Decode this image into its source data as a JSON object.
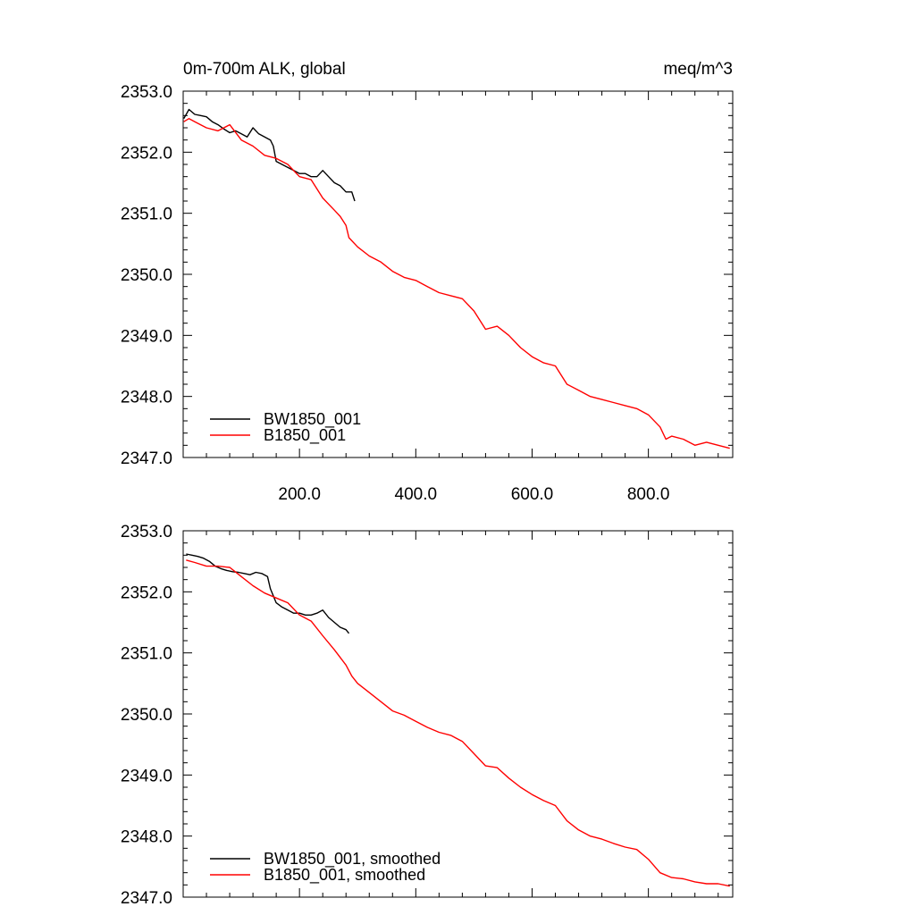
{
  "chart_data": [
    {
      "type": "line",
      "title_left": "0m-700m ALK, global",
      "title_right": "meq/m^3",
      "xlim": [
        0,
        945
      ],
      "ylim": [
        2347.0,
        2353.0
      ],
      "x_ticks": [
        200,
        400,
        600,
        800
      ],
      "x_tick_labels": [
        "200.0",
        "400.0",
        "600.0",
        "800.0"
      ],
      "y_ticks": [
        2347,
        2348,
        2349,
        2350,
        2351,
        2352,
        2353
      ],
      "y_tick_labels": [
        "2347.0",
        "2348.0",
        "2349.0",
        "2350.0",
        "2351.0",
        "2352.0",
        "2353.0"
      ],
      "series": [
        {
          "name": "BW1850_001",
          "color": "#000000",
          "x": [
            1,
            10,
            20,
            30,
            40,
            50,
            60,
            70,
            80,
            90,
            100,
            110,
            120,
            130,
            140,
            150,
            155,
            160,
            170,
            180,
            190,
            200,
            210,
            220,
            230,
            240,
            250,
            260,
            270,
            280,
            290,
            295
          ],
          "y": [
            2352.55,
            2352.7,
            2352.62,
            2352.6,
            2352.58,
            2352.5,
            2352.45,
            2352.38,
            2352.32,
            2352.35,
            2352.3,
            2352.25,
            2352.4,
            2352.3,
            2352.25,
            2352.2,
            2352.1,
            2351.85,
            2351.8,
            2351.75,
            2351.7,
            2351.65,
            2351.65,
            2351.6,
            2351.6,
            2351.7,
            2351.6,
            2351.5,
            2351.45,
            2351.35,
            2351.35,
            2351.2
          ]
        },
        {
          "name": "B1850_001",
          "color": "#ff0000",
          "x": [
            1,
            10,
            20,
            40,
            60,
            80,
            100,
            120,
            140,
            160,
            180,
            200,
            220,
            240,
            260,
            270,
            280,
            285,
            290,
            300,
            320,
            340,
            360,
            380,
            400,
            420,
            440,
            460,
            480,
            500,
            520,
            540,
            560,
            580,
            600,
            620,
            640,
            660,
            680,
            700,
            720,
            740,
            760,
            780,
            800,
            820,
            830,
            840,
            860,
            880,
            900,
            920,
            940
          ],
          "y": [
            2352.5,
            2352.55,
            2352.5,
            2352.4,
            2352.35,
            2352.45,
            2352.2,
            2352.1,
            2351.95,
            2351.9,
            2351.8,
            2351.6,
            2351.55,
            2351.25,
            2351.05,
            2350.95,
            2350.8,
            2350.6,
            2350.55,
            2350.45,
            2350.3,
            2350.2,
            2350.05,
            2349.95,
            2349.9,
            2349.8,
            2349.7,
            2349.65,
            2349.6,
            2349.4,
            2349.1,
            2349.15,
            2349.0,
            2348.8,
            2348.65,
            2348.55,
            2348.5,
            2348.2,
            2348.1,
            2348.0,
            2347.95,
            2347.9,
            2347.85,
            2347.8,
            2347.7,
            2347.5,
            2347.3,
            2347.35,
            2347.3,
            2347.2,
            2347.25,
            2347.2,
            2347.15
          ]
        }
      ],
      "legend": [
        "BW1850_001",
        "B1850_001"
      ],
      "legend_position": "bottom-left"
    },
    {
      "type": "line",
      "xlim": [
        0,
        945
      ],
      "ylim": [
        2347.0,
        2353.0
      ],
      "x_ticks": [
        200,
        400,
        600,
        800
      ],
      "y_ticks": [
        2347,
        2348,
        2349,
        2350,
        2351,
        2352,
        2353
      ],
      "y_tick_labels": [
        "2347.0",
        "2348.0",
        "2349.0",
        "2350.0",
        "2351.0",
        "2352.0",
        "2353.0"
      ],
      "series": [
        {
          "name": "BW1850_001, smoothed",
          "color": "#000000",
          "x": [
            5,
            15,
            25,
            35,
            45,
            55,
            65,
            75,
            85,
            95,
            105,
            115,
            125,
            135,
            145,
            150,
            160,
            170,
            180,
            190,
            200,
            210,
            220,
            230,
            240,
            250,
            260,
            270,
            280,
            285
          ],
          "y": [
            2352.62,
            2352.6,
            2352.58,
            2352.55,
            2352.5,
            2352.42,
            2352.38,
            2352.35,
            2352.33,
            2352.32,
            2352.3,
            2352.28,
            2352.32,
            2352.3,
            2352.25,
            2352.05,
            2351.82,
            2351.75,
            2351.7,
            2351.65,
            2351.65,
            2351.62,
            2351.62,
            2351.65,
            2351.7,
            2351.58,
            2351.5,
            2351.42,
            2351.38,
            2351.32
          ]
        },
        {
          "name": "B1850_001, smoothed",
          "color": "#ff0000",
          "x": [
            5,
            20,
            40,
            60,
            80,
            100,
            120,
            140,
            160,
            180,
            200,
            220,
            240,
            260,
            280,
            290,
            300,
            320,
            340,
            360,
            380,
            400,
            420,
            440,
            460,
            480,
            500,
            520,
            540,
            560,
            580,
            600,
            620,
            640,
            660,
            680,
            700,
            720,
            740,
            760,
            780,
            800,
            820,
            840,
            860,
            880,
            900,
            920,
            940
          ],
          "y": [
            2352.52,
            2352.48,
            2352.42,
            2352.42,
            2352.4,
            2352.25,
            2352.1,
            2351.98,
            2351.9,
            2351.82,
            2351.62,
            2351.52,
            2351.28,
            2351.05,
            2350.8,
            2350.62,
            2350.5,
            2350.35,
            2350.2,
            2350.05,
            2349.98,
            2349.88,
            2349.78,
            2349.7,
            2349.65,
            2349.55,
            2349.35,
            2349.15,
            2349.12,
            2348.95,
            2348.8,
            2348.68,
            2348.58,
            2348.5,
            2348.25,
            2348.1,
            2348.0,
            2347.95,
            2347.88,
            2347.82,
            2347.78,
            2347.62,
            2347.4,
            2347.32,
            2347.3,
            2347.25,
            2347.22,
            2347.22,
            2347.18
          ]
        }
      ],
      "legend": [
        "BW1850_001, smoothed",
        "B1850_001, smoothed"
      ],
      "legend_position": "bottom-left"
    }
  ]
}
